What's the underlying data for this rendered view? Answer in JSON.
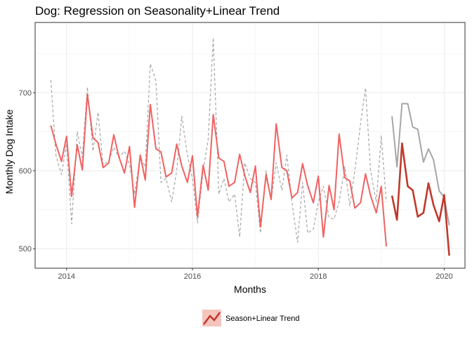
{
  "chart_data": {
    "type": "line",
    "title": "Dog: Regression on Seasonality+Linear Trend",
    "xlabel": "Months",
    "ylabel": "Monthly Dog Intake",
    "xlim": [
      2013.5,
      2020.33
    ],
    "ylim": [
      475,
      790
    ],
    "x_ticks": [
      2014,
      2016,
      2018,
      2020
    ],
    "x_tick_labels": [
      "2014",
      "2016",
      "2018",
      "2020"
    ],
    "y_ticks": [
      500,
      600,
      700
    ],
    "y_tick_labels": [
      "500",
      "600",
      "700"
    ],
    "grid": true,
    "legend_position": "bottom",
    "legend": {
      "label": "Season+Linear Trend"
    },
    "colors": {
      "actual": "#a6a6a6",
      "fitted": "#f06262",
      "forecast": "#c0392b",
      "legend_key_bg": "#f5c4bd"
    },
    "series": [
      {
        "role": "actual",
        "style": "dashed",
        "x": [
          2013.75,
          2013.83,
          2013.92,
          2014.0,
          2014.08,
          2014.17,
          2014.25,
          2014.33,
          2014.42,
          2014.5,
          2014.58,
          2014.67,
          2014.75,
          2014.83,
          2014.92,
          2015.0,
          2015.08,
          2015.17,
          2015.25,
          2015.33,
          2015.42,
          2015.5,
          2015.58,
          2015.67,
          2015.75,
          2015.83,
          2015.92,
          2016.0,
          2016.08,
          2016.17,
          2016.25,
          2016.33,
          2016.42,
          2016.5,
          2016.58,
          2016.67,
          2016.75,
          2016.83,
          2016.92,
          2017.0,
          2017.08,
          2017.17,
          2017.25,
          2017.33,
          2017.42,
          2017.5,
          2017.58,
          2017.67,
          2017.75,
          2017.83,
          2017.92,
          2018.0,
          2018.08,
          2018.17,
          2018.25,
          2018.33,
          2018.42,
          2018.5,
          2018.58,
          2018.67,
          2018.75,
          2018.83,
          2018.92,
          2019.0,
          2019.08
        ],
        "y": [
          716,
          620,
          595,
          635,
          532,
          650,
          617,
          707,
          625,
          675,
          607,
          613,
          630,
          617,
          625,
          608,
          570,
          618,
          605,
          737,
          715,
          585,
          590,
          560,
          600,
          670,
          620,
          590,
          533,
          600,
          640,
          770,
          570,
          590,
          560,
          570,
          515,
          610,
          590,
          585,
          520,
          600,
          562,
          610,
          575,
          620,
          560,
          508,
          585,
          520,
          525,
          560,
          580,
          540,
          538,
          560,
          605,
          555,
          600,
          660,
          706,
          600,
          560,
          645,
          560
        ]
      },
      {
        "role": "fitted",
        "style": "solid",
        "x": [
          2013.75,
          2013.83,
          2013.92,
          2014.0,
          2014.08,
          2014.17,
          2014.25,
          2014.33,
          2014.42,
          2014.5,
          2014.58,
          2014.67,
          2014.75,
          2014.83,
          2014.92,
          2015.0,
          2015.08,
          2015.17,
          2015.25,
          2015.33,
          2015.42,
          2015.5,
          2015.58,
          2015.67,
          2015.75,
          2015.83,
          2015.92,
          2016.0,
          2016.08,
          2016.17,
          2016.25,
          2016.33,
          2016.42,
          2016.5,
          2016.58,
          2016.67,
          2016.75,
          2016.83,
          2016.92,
          2017.0,
          2017.08,
          2017.17,
          2017.25,
          2017.33,
          2017.42,
          2017.5,
          2017.58,
          2017.67,
          2017.75,
          2017.83,
          2017.92,
          2018.0,
          2018.08,
          2018.17,
          2018.25,
          2018.33,
          2018.42,
          2018.5,
          2018.58,
          2018.67,
          2018.75,
          2018.83,
          2018.92,
          2019.0,
          2019.08
        ],
        "y": [
          658,
          634,
          612,
          644,
          567,
          633,
          601,
          698,
          642,
          636,
          604,
          610,
          646,
          618,
          597,
          631,
          553,
          620,
          588,
          685,
          628,
          624,
          592,
          597,
          634,
          606,
          585,
          619,
          541,
          607,
          575,
          672,
          616,
          612,
          580,
          585,
          621,
          594,
          572,
          606,
          528,
          595,
          563,
          660,
          604,
          600,
          565,
          572,
          609,
          581,
          559,
          593,
          515,
          581,
          550,
          647,
          591,
          587,
          552,
          559,
          596,
          568,
          546,
          580,
          503
        ]
      },
      {
        "role": "forecast",
        "style": "solid",
        "x": [
          2019.17,
          2019.25,
          2019.33,
          2019.42,
          2019.5,
          2019.58,
          2019.67,
          2019.75,
          2019.83,
          2019.92,
          2020.0,
          2020.08
        ],
        "y": [
          568,
          537,
          635,
          580,
          575,
          541,
          546,
          584,
          556,
          535,
          569,
          491
        ]
      },
      {
        "role": "actual-holdout",
        "style": "solid",
        "x": [
          2019.17,
          2019.25,
          2019.33,
          2019.42,
          2019.5,
          2019.58,
          2019.67,
          2019.75,
          2019.83,
          2019.92,
          2020.0,
          2020.08
        ],
        "y": [
          670,
          605,
          686,
          686,
          656,
          653,
          611,
          628,
          614,
          574,
          566,
          530
        ]
      }
    ]
  }
}
